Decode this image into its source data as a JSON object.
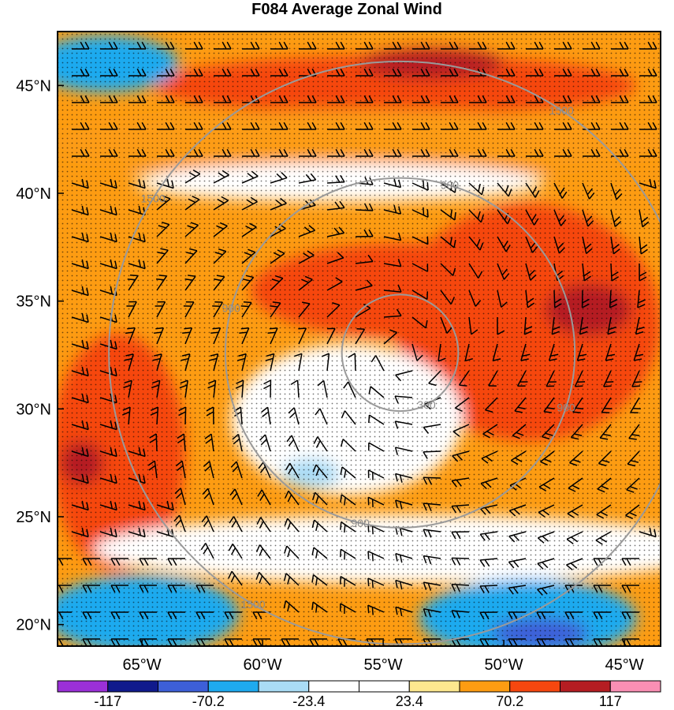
{
  "chart_data": {
    "type": "heatmap",
    "title": "F084 Average Zonal Wind",
    "xlabel": "",
    "ylabel": "",
    "x_ticks": [
      "65°W",
      "60°W",
      "55°W",
      "50°W",
      "45°W"
    ],
    "x_tick_values": [
      -65,
      -60,
      -55,
      -50,
      -45
    ],
    "y_ticks": [
      "20°N",
      "25°N",
      "30°N",
      "35°N",
      "40°N",
      "45°N"
    ],
    "y_tick_values": [
      20,
      25,
      30,
      35,
      40,
      45
    ],
    "xlim": [
      -68.5,
      -43.5
    ],
    "ylim": [
      19,
      47.5
    ],
    "colorbar": {
      "colors": [
        "#9b30d8",
        "#101a8c",
        "#3d5fd8",
        "#1eaaef",
        "#aadcf5",
        "#ffffff",
        "#ffffff",
        "#fde88f",
        "#fd9c12",
        "#f6470f",
        "#b51d22",
        "#fa8fb4"
      ],
      "tick_labels": [
        "-117",
        "-70.2",
        "-23.4",
        "23.4",
        "70.2",
        "117"
      ]
    },
    "range_rings": {
      "center": [
        -54.3,
        32.6
      ],
      "radii_km": [
        300,
        900,
        1500
      ],
      "labels": [
        {
          "text": "300",
          "ring": 300
        },
        {
          "text": "900",
          "ring": 900
        },
        {
          "text": "900",
          "ring": 900
        },
        {
          "text": "900",
          "ring": 900
        },
        {
          "text": "900",
          "ring": 900
        },
        {
          "text": "1500",
          "ring": 1500
        },
        {
          "text": "1500",
          "ring": 1500
        },
        {
          "text": "1500",
          "ring": 1500
        }
      ]
    },
    "regions": [
      {
        "name": "jet-north",
        "level": 9,
        "cx": -54.5,
        "cy": 45.0,
        "rx": 10.0,
        "ry": 1.4
      },
      {
        "name": "jet-north-core",
        "level": 10,
        "cx": -53.0,
        "cy": 46.0,
        "rx": 3.0,
        "ry": 0.7
      },
      {
        "name": "band-40N",
        "level": 8,
        "cx": -56.0,
        "cy": 42.3,
        "rx": 13.0,
        "ry": 1.6
      },
      {
        "name": "gap-41N",
        "level": 6,
        "cx": -56.8,
        "cy": 40.5,
        "rx": 8.5,
        "ry": 0.9
      },
      {
        "name": "ring-east",
        "level": 9,
        "cx": -49.0,
        "cy": 34.0,
        "rx": 5.5,
        "ry": 5.5
      },
      {
        "name": "ring-north",
        "level": 9,
        "cx": -54.0,
        "cy": 35.5,
        "rx": 6.5,
        "ry": 2.2
      },
      {
        "name": "ring-east-core",
        "level": 10,
        "cx": -46.5,
        "cy": 34.6,
        "rx": 1.8,
        "ry": 1.2
      },
      {
        "name": "west-band",
        "level": 9,
        "cx": -66.0,
        "cy": 28.0,
        "rx": 2.8,
        "ry": 5.5
      },
      {
        "name": "west-core",
        "level": 10,
        "cx": -67.5,
        "cy": 27.5,
        "rx": 0.9,
        "ry": 1.0
      },
      {
        "name": "eye-calm",
        "level": 6,
        "cx": -56.5,
        "cy": 29.5,
        "rx": 4.8,
        "ry": 3.5
      },
      {
        "name": "south-calm",
        "level": 6,
        "cx": -54.0,
        "cy": 23.5,
        "rx": 13.0,
        "ry": 1.6
      },
      {
        "name": "eye-blue",
        "level": 4,
        "cx": -58.0,
        "cy": 27.0,
        "rx": 1.2,
        "ry": 0.7
      },
      {
        "name": "sw-easterlies",
        "level": 3,
        "cx": -65.0,
        "cy": 20.5,
        "rx": 4.0,
        "ry": 1.8
      },
      {
        "name": "se-easterlies",
        "level": 3,
        "cx": -49.0,
        "cy": 20.3,
        "rx": 4.5,
        "ry": 1.8
      },
      {
        "name": "se-core",
        "level": 2,
        "cx": -48.5,
        "cy": 19.6,
        "rx": 2.0,
        "ry": 0.7
      },
      {
        "name": "nw-easterlies",
        "level": 3,
        "cx": -66.5,
        "cy": 46.0,
        "rx": 3.0,
        "ry": 1.3
      }
    ]
  }
}
